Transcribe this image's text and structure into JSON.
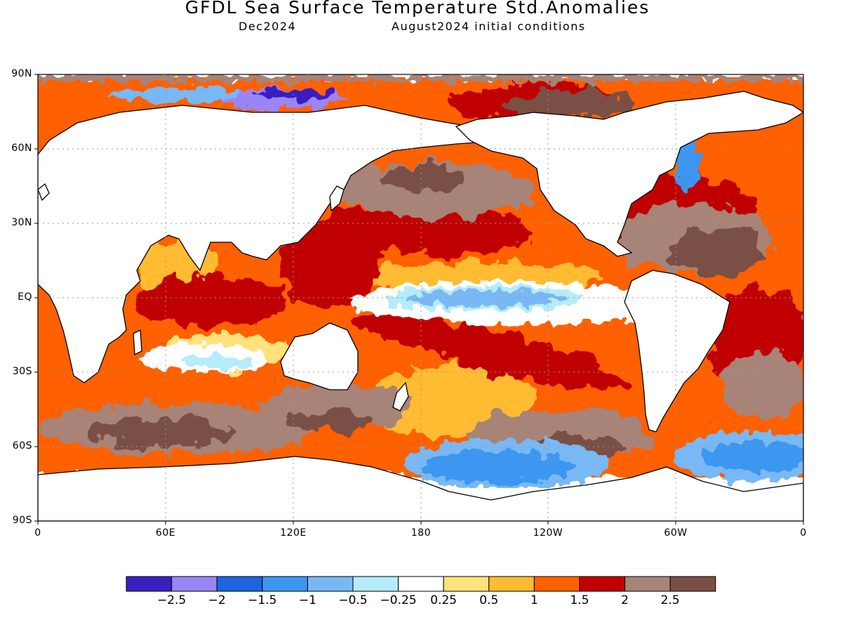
{
  "header": {
    "title": "GFDL Sea Surface Temperature Std.Anomalies",
    "forecast_month": "Dec2024",
    "init_conditions": "August2024 initial conditions"
  },
  "axes": {
    "lat_labels": [
      "90N",
      "60N",
      "30N",
      "EQ",
      "30S",
      "60S",
      "90S"
    ],
    "lat_values": [
      90,
      60,
      30,
      0,
      -30,
      -60,
      -90
    ],
    "lon_labels": [
      "0",
      "60E",
      "120E",
      "180",
      "120W",
      "60W",
      "0"
    ],
    "lon_values": [
      0,
      60,
      120,
      180,
      240,
      300,
      360
    ]
  },
  "colorbar": {
    "colors": [
      "#3a1fbf",
      "#9a85f5",
      "#1e63e0",
      "#3c96f0",
      "#78b8f5",
      "#b4ecf8",
      "#ffffff",
      "#ffe27a",
      "#ffbb33",
      "#ff6000",
      "#c00000",
      "#a88378",
      "#7a5045"
    ],
    "labels": [
      "−2.5",
      "−2",
      "−1.5",
      "−1",
      "−0.5",
      "−0.25",
      "0.25",
      "0.5",
      "1",
      "1.5",
      "2",
      "2.5"
    ],
    "bounds": [
      -2.5,
      -2,
      -1.5,
      -1,
      -0.5,
      -0.25,
      0.25,
      0.5,
      1,
      1.5,
      2,
      2.5
    ]
  },
  "map_data": {
    "field": "SST standardized anomaly",
    "regions": [
      {
        "name": "Equatorial central-east Pacific cool tongue",
        "lon": [
          180,
          270
        ],
        "lat": [
          -8,
          5
        ],
        "value": -0.6
      },
      {
        "name": "Southern Ocean south Pacific cool",
        "lon": [
          185,
          265
        ],
        "lat": [
          -72,
          -58
        ],
        "value": -1.2
      },
      {
        "name": "South Atlantic subpolar cool",
        "lon": [
          310,
          360
        ],
        "lat": [
          -68,
          -50
        ],
        "value": -1.3
      },
      {
        "name": "Arctic Kara/Barents cool",
        "lon": [
          55,
          85
        ],
        "lat": [
          78,
          86
        ],
        "value": -2.2
      },
      {
        "name": "Western Pacific warm pool",
        "lon": [
          120,
          175
        ],
        "lat": [
          -10,
          30
        ],
        "value": 2.3
      },
      {
        "name": "North Pacific warm",
        "lon": [
          140,
          230
        ],
        "lat": [
          30,
          55
        ],
        "value": 2.4
      },
      {
        "name": "North Atlantic warm",
        "lon": [
          280,
          345
        ],
        "lat": [
          10,
          55
        ],
        "value": 2.5
      },
      {
        "name": "South Indian Ocean warm band",
        "lon": [
          10,
          120
        ],
        "lat": [
          -55,
          -35
        ],
        "value": 2.6
      },
      {
        "name": "Tropical Indian Ocean warm",
        "lon": [
          45,
          110
        ],
        "lat": [
          -10,
          20
        ],
        "value": 1.6
      },
      {
        "name": "South Pacific diagonal warm band",
        "lon": [
          160,
          280
        ],
        "lat": [
          -40,
          -20
        ],
        "value": 2.0
      }
    ]
  }
}
